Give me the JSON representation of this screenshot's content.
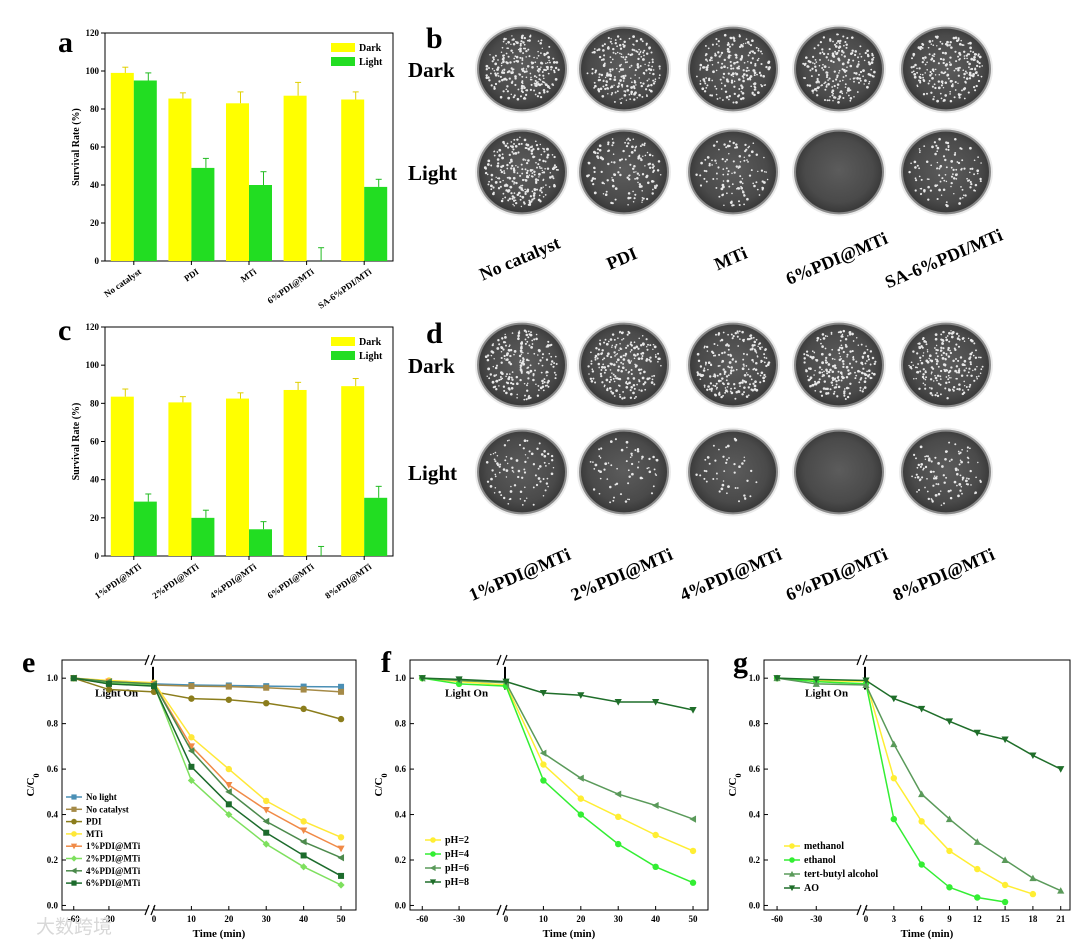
{
  "chart_data": [
    {
      "panel": "a",
      "type": "bar",
      "ylabel": "Survival Rate (%)",
      "ylim": [
        0,
        120
      ],
      "yticks": [
        "0",
        "20",
        "40",
        "60",
        "80",
        "100",
        "120"
      ],
      "categories": [
        "No catalyst",
        "PDI",
        "MTi",
        "6%PDI@MTi",
        "SA-6%PDI/MTi"
      ],
      "series": [
        {
          "name": "Dark",
          "color": "#ffff00",
          "values": [
            99,
            85.5,
            83,
            87,
            85
          ],
          "errors": [
            3,
            3,
            6,
            7,
            4
          ]
        },
        {
          "name": "Light",
          "color": "#22dd22",
          "values": [
            95,
            49,
            40,
            0,
            39
          ],
          "errors": [
            4,
            5,
            7,
            7,
            4
          ]
        }
      ],
      "legend": "top-right"
    },
    {
      "panel": "c",
      "type": "bar",
      "ylabel": "Survival Rate (%)",
      "ylim": [
        0,
        120
      ],
      "yticks": [
        "0",
        "20",
        "40",
        "60",
        "80",
        "100",
        "120"
      ],
      "categories": [
        "1%PDI@MTi",
        "2%PDI@MTi",
        "4%PDI@MTi",
        "6%PDI@MTi",
        "8%PDI@MTi"
      ],
      "series": [
        {
          "name": "Dark",
          "color": "#ffff00",
          "values": [
            83.5,
            80.5,
            82.5,
            87,
            89
          ],
          "errors": [
            4,
            3,
            3,
            4,
            4
          ]
        },
        {
          "name": "Light",
          "color": "#22dd22",
          "values": [
            28.5,
            20,
            14,
            0,
            30.5
          ],
          "errors": [
            4,
            4,
            4,
            5,
            6
          ]
        }
      ],
      "legend": "top-right"
    },
    {
      "panel": "e",
      "type": "line",
      "xlabel": "Time (min)",
      "ylabel": "C/C0",
      "xticks": [
        "-60",
        "-30",
        "0",
        "10",
        "20",
        "30",
        "40",
        "50"
      ],
      "yticks": [
        "0.0",
        "0.2",
        "0.4",
        "0.6",
        "0.8",
        "1.0"
      ],
      "annotation": "Light On",
      "x": [
        -60,
        -30,
        0,
        10,
        20,
        30,
        40,
        50
      ],
      "series": [
        {
          "name": "No light",
          "color": "#4a8fb5",
          "marker": "square",
          "values": [
            1.0,
            0.98,
            0.975,
            0.97,
            0.968,
            0.965,
            0.963,
            0.962
          ]
        },
        {
          "name": "No catalyst",
          "color": "#a58a47",
          "marker": "square",
          "values": [
            1.0,
            0.975,
            0.97,
            0.965,
            0.963,
            0.958,
            0.95,
            0.94
          ]
        },
        {
          "name": "PDI",
          "color": "#8b7d1c",
          "marker": "circle",
          "values": [
            1.0,
            0.95,
            0.94,
            0.91,
            0.905,
            0.89,
            0.865,
            0.82
          ]
        },
        {
          "name": "MTi",
          "color": "#ffe838",
          "marker": "circle",
          "values": [
            1.0,
            0.99,
            0.98,
            0.74,
            0.6,
            0.46,
            0.37,
            0.3
          ]
        },
        {
          "name": "1%PDI@MTi",
          "color": "#f08a47",
          "marker": "triangle-down",
          "values": [
            1.0,
            0.985,
            0.975,
            0.7,
            0.53,
            0.42,
            0.33,
            0.25
          ]
        },
        {
          "name": "2%PDI@MTi",
          "color": "#7ee05e",
          "marker": "diamond",
          "values": [
            1.0,
            0.98,
            0.97,
            0.55,
            0.4,
            0.27,
            0.17,
            0.09
          ]
        },
        {
          "name": "4%PDI@MTi",
          "color": "#4c8a4c",
          "marker": "triangle-left",
          "values": [
            1.0,
            0.985,
            0.975,
            0.68,
            0.5,
            0.37,
            0.28,
            0.21
          ]
        },
        {
          "name": "6%PDI@MTi",
          "color": "#1c6b2c",
          "marker": "square",
          "values": [
            1.0,
            0.975,
            0.965,
            0.61,
            0.445,
            0.32,
            0.22,
            0.13
          ]
        }
      ]
    },
    {
      "panel": "f",
      "type": "line",
      "xlabel": "Time (min)",
      "ylabel": "C/C0",
      "xticks": [
        "-60",
        "-30",
        "0",
        "10",
        "20",
        "30",
        "40",
        "50"
      ],
      "yticks": [
        "0.0",
        "0.2",
        "0.4",
        "0.6",
        "0.8",
        "1.0"
      ],
      "annotation": "Light On",
      "x": [
        -60,
        -30,
        0,
        10,
        20,
        30,
        40,
        50
      ],
      "series": [
        {
          "name": "pH=2",
          "color": "#ffee33",
          "marker": "circle",
          "values": [
            1.0,
            0.985,
            0.97,
            0.62,
            0.47,
            0.39,
            0.31,
            0.24
          ]
        },
        {
          "name": "pH=4",
          "color": "#33ee33",
          "marker": "circle",
          "values": [
            1.0,
            0.975,
            0.965,
            0.55,
            0.4,
            0.27,
            0.17,
            0.1
          ]
        },
        {
          "name": "pH=6",
          "color": "#5a9a5a",
          "marker": "triangle-left",
          "values": [
            1.0,
            0.99,
            0.98,
            0.67,
            0.56,
            0.49,
            0.44,
            0.38
          ]
        },
        {
          "name": "pH=8",
          "color": "#1f6e2a",
          "marker": "triangle-down",
          "values": [
            1.0,
            0.995,
            0.985,
            0.935,
            0.925,
            0.895,
            0.895,
            0.86
          ]
        }
      ]
    },
    {
      "panel": "g",
      "type": "line",
      "xlabel": "Time (min)",
      "ylabel": "C/C0",
      "xticks": [
        "-60",
        "-30",
        "0",
        "3",
        "6",
        "9",
        "12",
        "15",
        "18",
        "21"
      ],
      "yticks": [
        "0.0",
        "0.2",
        "0.4",
        "0.6",
        "0.8",
        "1.0"
      ],
      "annotation": "Light On",
      "x": [
        -60,
        -30,
        0,
        3,
        6,
        9,
        12,
        15,
        18,
        21
      ],
      "series": [
        {
          "name": "methanol",
          "color": "#ffee33",
          "marker": "circle",
          "values": [
            1.0,
            0.99,
            0.985,
            0.56,
            0.37,
            0.24,
            0.16,
            0.09,
            0.05,
            null
          ]
        },
        {
          "name": "ethanol",
          "color": "#33ee33",
          "marker": "circle",
          "values": [
            1.0,
            0.985,
            0.975,
            0.38,
            0.18,
            0.08,
            0.035,
            0.015,
            null,
            null
          ]
        },
        {
          "name": "tert-butyl alcohol",
          "color": "#5a9a5a",
          "marker": "triangle-up",
          "values": [
            1.0,
            0.975,
            0.97,
            0.71,
            0.49,
            0.38,
            0.28,
            0.2,
            0.12,
            0.065
          ]
        },
        {
          "name": "AO",
          "color": "#1f6e2a",
          "marker": "triangle-down",
          "values": [
            1.0,
            0.995,
            0.99,
            0.91,
            0.865,
            0.81,
            0.76,
            0.73,
            0.66,
            0.6
          ]
        }
      ]
    }
  ],
  "photo_panels": [
    {
      "panel": "b",
      "rows": [
        "Dark",
        "Light"
      ],
      "columns": [
        "No catalyst",
        "PDI",
        "MTi",
        "6%PDI@MTi",
        "SA-6%PDI/MTi"
      ],
      "colony_density": [
        [
          1.0,
          0.85,
          0.8,
          0.85,
          0.85
        ],
        [
          0.95,
          0.55,
          0.45,
          0.0,
          0.45
        ]
      ]
    },
    {
      "panel": "d",
      "rows": [
        "Dark",
        "Light"
      ],
      "columns": [
        "1%PDI@MTi",
        "2%PDI@MTi",
        "4%PDI@MTi",
        "6%PDI@MTi",
        "8%PDI@MTi"
      ],
      "colony_density": [
        [
          0.85,
          0.85,
          0.85,
          0.85,
          0.85
        ],
        [
          0.35,
          0.25,
          0.18,
          0.0,
          0.4
        ]
      ]
    }
  ],
  "watermark": "大数跨境"
}
